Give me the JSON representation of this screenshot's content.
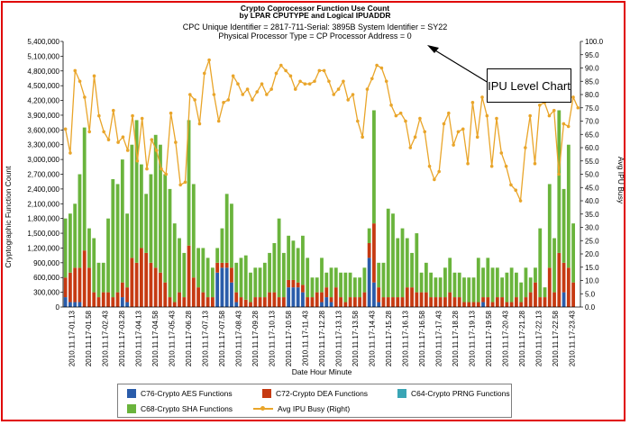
{
  "header": {
    "title_line1": "Crypto Coprocessor Function Use Count",
    "title_line2": "by LPAR CPUTYPE and Logical IPUADDR",
    "subtitle_line1": "CPC Unique Identifier = 2817-711-Serial: 3895B System Identifier = SY22",
    "subtitle_line2": "Physical Processor Type = CP  Processor Address = 0"
  },
  "callout": {
    "text": "IPU Level Chart"
  },
  "legend": {
    "items": [
      {
        "label": "C76-Crypto AES Functions",
        "color": "#2a5caa",
        "kind": "box"
      },
      {
        "label": "C72-Crypto DEA Functions",
        "color": "#c63a12",
        "kind": "box"
      },
      {
        "label": "C64-Crypto PRNG Functions",
        "color": "#3aa5b5",
        "kind": "box"
      },
      {
        "label": "C68-Crypto SHA Functions",
        "color": "#6ab43c",
        "kind": "box"
      },
      {
        "label": "Avg IPU Busy (Right)",
        "color": "#e9a52a",
        "kind": "line"
      }
    ]
  },
  "chart_data": {
    "type": "bar",
    "stacked": true,
    "title": "Crypto Coprocessor Function Use Count",
    "xlabel": "Date Hour Minute",
    "ylabel": "Cryptographic Function Count",
    "y2label": "Avg IPU Busy",
    "ylim": [
      0,
      5400000
    ],
    "y2lim": [
      0,
      100
    ],
    "y_ticks": [
      "0",
      "300,000",
      "600,000",
      "900,000",
      "1,200,000",
      "1,500,000",
      "1,800,000",
      "2,100,000",
      "2,400,000",
      "2,700,000",
      "3,000,000",
      "3,300,000",
      "3,600,000",
      "3,900,000",
      "4,200,000",
      "4,500,000",
      "4,800,000",
      "5,100,000",
      "5,400,000"
    ],
    "y2_ticks": [
      "0.0",
      "5.0",
      "10.0",
      "15.0",
      "20.0",
      "25.0",
      "30.0",
      "35.0",
      "40.0",
      "45.0",
      "50.0",
      "55.0",
      "60.0",
      "65.0",
      "70.0",
      "75.0",
      "80.0",
      "85.0",
      "90.0",
      "95.0",
      "100.0"
    ],
    "x_tick_labels": [
      "2010.11.17-01.13",
      "2010.11.17-01.58",
      "2010.11.17-02.43",
      "2010.11.17-03.28",
      "2010.11.17-04.13",
      "2010.11.17-04.58",
      "2010.11.17-05.43",
      "2010.11.17-06.28",
      "2010.11.17-07.13",
      "2010.11.17-07.58",
      "2010.11.17-08.43",
      "2010.11.17-09.28",
      "2010.11.17-10.13",
      "2010.11.17-10.58",
      "2010.11.17-11.43",
      "2010.11.17-12.28",
      "2010.11.17-13.13",
      "2010.11.17-13.58",
      "2010.11.17-14.43",
      "2010.11.17-15.28",
      "2010.11.17-16.13",
      "2010.11.17-16.58",
      "2010.11.17-17.43",
      "2010.11.17-18.28",
      "2010.11.17-19.13",
      "2010.11.17-19.58",
      "2010.11.17-20.43",
      "2010.11.17-21.28",
      "2010.11.17-22.13",
      "2010.11.17-22.58",
      "2010.11.17-23.43"
    ],
    "series": [
      {
        "name": "C76-Crypto AES Functions",
        "color": "#2a5caa",
        "values": [
          200000,
          100000,
          100000,
          100000,
          0,
          0,
          0,
          0,
          0,
          0,
          0,
          0,
          200000,
          100000,
          0,
          0,
          0,
          0,
          0,
          0,
          0,
          0,
          0,
          0,
          0,
          0,
          0,
          0,
          0,
          0,
          0,
          0,
          700000,
          800000,
          800000,
          500000,
          100000,
          0,
          0,
          0,
          0,
          0,
          0,
          0,
          0,
          0,
          0,
          400000,
          400000,
          400000,
          300000,
          0,
          0,
          0,
          100000,
          200000,
          100000,
          0,
          0,
          0,
          0,
          0,
          0,
          0,
          1000000,
          500000,
          100000,
          0,
          0,
          0,
          0,
          0,
          0,
          0,
          0,
          0,
          0,
          0,
          0,
          0,
          0,
          0,
          0,
          0,
          0,
          0,
          0,
          0,
          100000,
          0,
          0,
          0,
          0,
          0,
          0,
          0,
          0,
          0,
          0,
          0,
          0,
          0,
          0,
          0,
          0,
          300000,
          0,
          0,
          0
        ]
      },
      {
        "name": "C72-Crypto DEA Functions",
        "color": "#c63a12",
        "values": [
          400000,
          600000,
          700000,
          700000,
          1150000,
          800000,
          300000,
          200000,
          300000,
          300000,
          200000,
          300000,
          300000,
          300000,
          1000000,
          900000,
          1200000,
          1100000,
          900000,
          800000,
          700000,
          500000,
          200000,
          100000,
          300000,
          200000,
          1250000,
          600000,
          400000,
          300000,
          200000,
          200000,
          200000,
          100000,
          100000,
          300000,
          200000,
          200000,
          150000,
          100000,
          200000,
          200000,
          200000,
          300000,
          300000,
          200000,
          200000,
          150000,
          150000,
          100000,
          150000,
          200000,
          200000,
          300000,
          200000,
          200000,
          100000,
          400000,
          200000,
          100000,
          200000,
          200000,
          200000,
          300000,
          300000,
          1200000,
          300000,
          200000,
          200000,
          200000,
          200000,
          200000,
          400000,
          400000,
          300000,
          300000,
          300000,
          200000,
          200000,
          200000,
          200000,
          300000,
          200000,
          200000,
          100000,
          100000,
          100000,
          100000,
          100000,
          200000,
          100000,
          200000,
          200000,
          100000,
          100000,
          200000,
          100000,
          200000,
          300000,
          500000,
          200000,
          200000,
          800000,
          300000,
          1100000,
          600000,
          800000,
          500000
        ]
      },
      {
        "name": "C64-Crypto PRNG Functions",
        "color": "#3aa5b5",
        "values": [
          0,
          0,
          0,
          0,
          0,
          0,
          0,
          0,
          0,
          0,
          0,
          0,
          0,
          0,
          0,
          0,
          0,
          0,
          0,
          0,
          0,
          0,
          0,
          0,
          0,
          0,
          0,
          0,
          0,
          0,
          0,
          0,
          0,
          0,
          0,
          0,
          0,
          0,
          0,
          0,
          0,
          0,
          0,
          0,
          0,
          0,
          0,
          0,
          0,
          0,
          0,
          0,
          0,
          0,
          0,
          0,
          0,
          0,
          0,
          0,
          0,
          0,
          0,
          0,
          0,
          0,
          0,
          0,
          0,
          0,
          0,
          0,
          0,
          0,
          0,
          0,
          0,
          0,
          0,
          0,
          0,
          0,
          0,
          0,
          0,
          0,
          0,
          0,
          0,
          0,
          0,
          0,
          0,
          0,
          0,
          0,
          0,
          0,
          0,
          0,
          0,
          0,
          0,
          0,
          0,
          0,
          0,
          0
        ]
      },
      {
        "name": "C68-Crypto SHA Functions",
        "color": "#6ab43c",
        "values": [
          1200000,
          1200000,
          1300000,
          1900000,
          2500000,
          800000,
          1100000,
          700000,
          600000,
          1500000,
          2400000,
          2200000,
          2500000,
          1500000,
          2300000,
          2900000,
          1700000,
          1200000,
          1800000,
          2700000,
          2600000,
          2200000,
          2200000,
          1600000,
          1100000,
          900000,
          2550000,
          1900000,
          800000,
          900000,
          800000,
          600000,
          300000,
          700000,
          1400000,
          1300000,
          600000,
          800000,
          900000,
          600000,
          600000,
          600000,
          700000,
          800000,
          1000000,
          1600000,
          900000,
          900000,
          800000,
          700000,
          1000000,
          800000,
          400000,
          300000,
          700000,
          300000,
          600000,
          400000,
          500000,
          600000,
          500000,
          400000,
          400000,
          500000,
          300000,
          2300000,
          500000,
          700000,
          1800000,
          1700000,
          1200000,
          1400000,
          1000000,
          700000,
          1200000,
          400000,
          600000,
          500000,
          400000,
          400000,
          600000,
          700000,
          500000,
          500000,
          500000,
          500000,
          500000,
          900000,
          600000,
          800000,
          700000,
          600000,
          400000,
          600000,
          700000,
          500000,
          400000,
          600000,
          300000,
          300000,
          1400000,
          200000,
          1700000,
          1100000,
          2900000,
          1500000,
          2500000,
          1200000
        ]
      },
      {
        "name": "Avg IPU Busy (Right)",
        "axis": "right",
        "color": "#e9a52a",
        "values": [
          67,
          58,
          89,
          85,
          79,
          66,
          87,
          72,
          66,
          63,
          74,
          62,
          64,
          59,
          72,
          55,
          71,
          52,
          63,
          59,
          52,
          50,
          73,
          62,
          46,
          47,
          80,
          78,
          69,
          88,
          93,
          80,
          70,
          77,
          78,
          87,
          84,
          80,
          82,
          78,
          81,
          84,
          80,
          82,
          88,
          91,
          89,
          87,
          82,
          85,
          84,
          84,
          85,
          89,
          89,
          85,
          80,
          82,
          85,
          78,
          80,
          70,
          64,
          82,
          86,
          91,
          90,
          85,
          76,
          72,
          73,
          70,
          60,
          64,
          71,
          66,
          53,
          48,
          51,
          69,
          73,
          61,
          66,
          67,
          54,
          77,
          64,
          79,
          72,
          53,
          71,
          58,
          53,
          46,
          44,
          40,
          60,
          72,
          54,
          76,
          77,
          72,
          74,
          50,
          69,
          68,
          79,
          75
        ]
      }
    ]
  }
}
